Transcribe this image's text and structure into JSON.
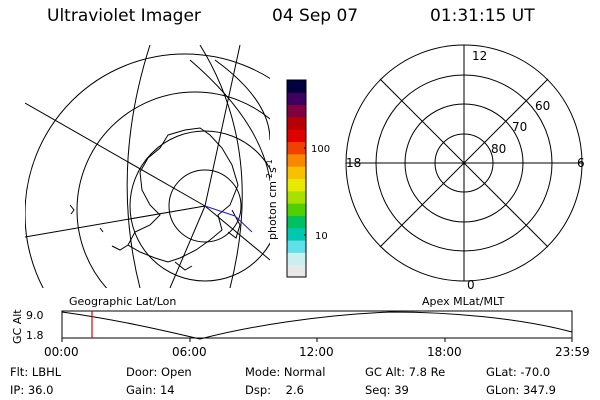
{
  "header": {
    "title": "Ultraviolet Imager",
    "date": "04 Sep 07",
    "time": "01:31:15 UT"
  },
  "colorbar": {
    "unit": "photon cm",
    "unit_exp1": "-2",
    "unit_s": "s",
    "unit_exp2": "-1",
    "tick_100": "100",
    "tick_10": "10",
    "colors": [
      "#e8e8e8",
      "#c8f0f0",
      "#60e0e8",
      "#00c8b0",
      "#00c060",
      "#50d000",
      "#a8e000",
      "#e8e800",
      "#f8c000",
      "#f88800",
      "#f04000",
      "#e00000",
      "#b80000",
      "#800040",
      "#400060",
      "#000040"
    ]
  },
  "polar": {
    "lat_labels": [
      "60",
      "70",
      "80"
    ],
    "mlt_labels": {
      "top": "12",
      "left": "18",
      "right": "6",
      "bottom": "0"
    }
  },
  "lower": {
    "left_caption": "Geographic Lat/Lon",
    "right_caption": "Apex MLat/MLT",
    "ylabel": "GC Alt",
    "y_ticks": [
      "9.0",
      "1.8"
    ],
    "x_ticks": [
      "00:00",
      "06:00",
      "12:00",
      "18:00",
      "23:59"
    ]
  },
  "info": {
    "row1": [
      {
        "label": "Flt:",
        "value": "LBHL"
      },
      {
        "label": "Door:",
        "value": "Open"
      },
      {
        "label": "Mode:",
        "value": "Normal"
      },
      {
        "label": "GC Alt:",
        "value": "7.8 Re"
      },
      {
        "label": "GLat:",
        "value": "-70.0"
      }
    ],
    "row2": [
      {
        "label": "IP:",
        "value": "36.0"
      },
      {
        "label": "Gain:",
        "value": "14"
      },
      {
        "label": "Dsp:",
        "value": "2.6"
      },
      {
        "label": "Seq:",
        "value": "39"
      },
      {
        "label": "GLon:",
        "value": "347.9"
      }
    ]
  },
  "marker_color": "#e00000"
}
